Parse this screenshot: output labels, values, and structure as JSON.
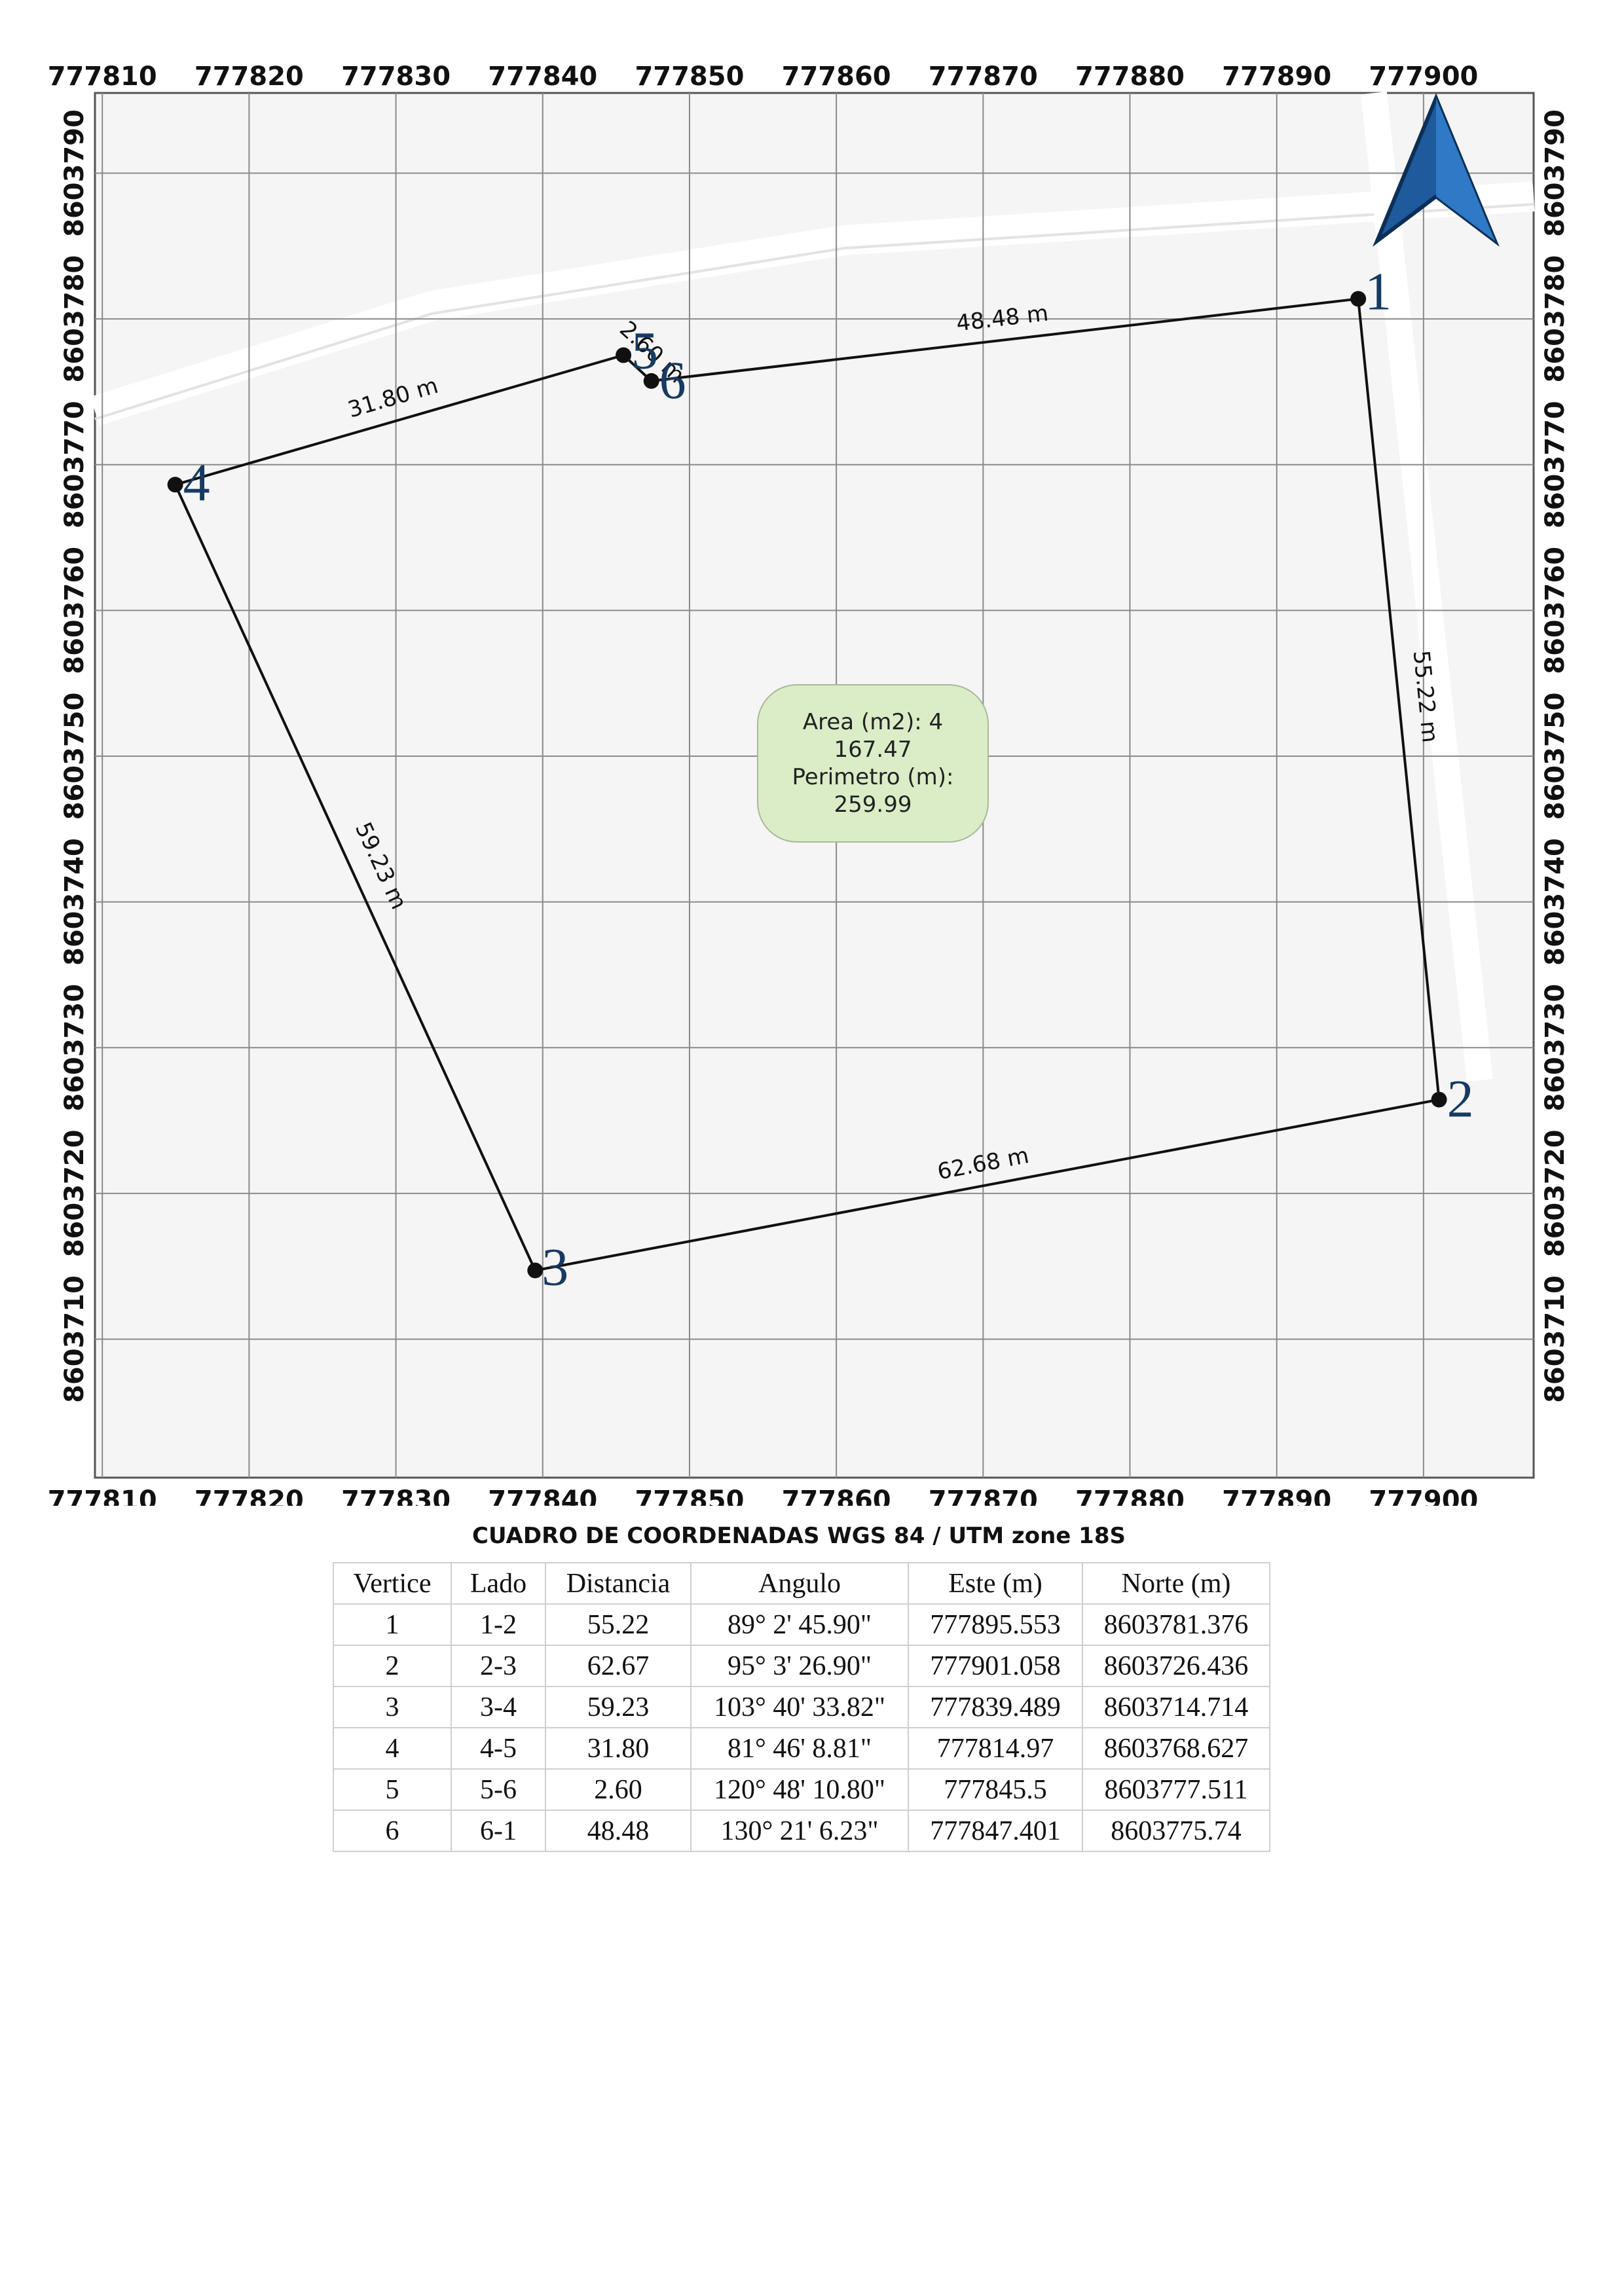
{
  "map": {
    "x_ticks": [
      "777810",
      "777820",
      "777830",
      "777840",
      "777850",
      "777860",
      "777870",
      "777880",
      "777890",
      "777900"
    ],
    "y_ticks": [
      "8603790",
      "8603780",
      "8603770",
      "8603760",
      "8603750",
      "8603740",
      "8603730",
      "8603720",
      "8603710"
    ],
    "x_range": [
      777809.5,
      777907.5
    ],
    "y_range": [
      8603700.5,
      8603795.5
    ],
    "vertices": [
      {
        "label": "1",
        "este": 777895.553,
        "norte": 8603781.376
      },
      {
        "label": "2",
        "este": 777901.058,
        "norte": 8603726.436
      },
      {
        "label": "3",
        "este": 777839.489,
        "norte": 8603714.714
      },
      {
        "label": "4",
        "este": 777814.97,
        "norte": 8603768.627
      },
      {
        "label": "5",
        "este": 777845.5,
        "norte": 8603777.511
      },
      {
        "label": "6",
        "este": 777847.401,
        "norte": 8603775.74
      }
    ],
    "side_labels": [
      "55.22 m",
      "62.68 m",
      "59.23 m",
      "31.80 m",
      "2.60 m",
      "48.48 m"
    ],
    "area_label": {
      "line1": "Area (m2): 4",
      "line2": "167.47",
      "line3": "Perimetro (m):",
      "line4": "259.99"
    },
    "colors": {
      "background": "#f5f5f5",
      "grid": "#8a8a8a",
      "road": "#ffffff",
      "polygon": "#111111",
      "vertex_label": "#163a63",
      "area_box_fill": "#dbedc7",
      "north_arrow": "#1e5a9c"
    },
    "north_arrow_icon": "north-arrow-icon"
  },
  "table": {
    "title": "CUADRO DE COORDENADAS WGS 84 / UTM zone 18S",
    "headers": [
      "Vertice",
      "Lado",
      "Distancia",
      "Angulo",
      "Este (m)",
      "Norte (m)"
    ],
    "rows": [
      [
        "1",
        "1-2",
        "55.22",
        "89° 2' 45.90\"",
        "777895.553",
        "8603781.376"
      ],
      [
        "2",
        "2-3",
        "62.67",
        "95° 3' 26.90\"",
        "777901.058",
        "8603726.436"
      ],
      [
        "3",
        "3-4",
        "59.23",
        "103° 40' 33.82\"",
        "777839.489",
        "8603714.714"
      ],
      [
        "4",
        "4-5",
        "31.80",
        "81° 46' 8.81\"",
        "777814.97",
        "8603768.627"
      ],
      [
        "5",
        "5-6",
        "2.60",
        "120° 48' 10.80\"",
        "777845.5",
        "8603777.511"
      ],
      [
        "6",
        "6-1",
        "48.48",
        "130° 21' 6.23\"",
        "777847.401",
        "8603775.74"
      ]
    ]
  }
}
